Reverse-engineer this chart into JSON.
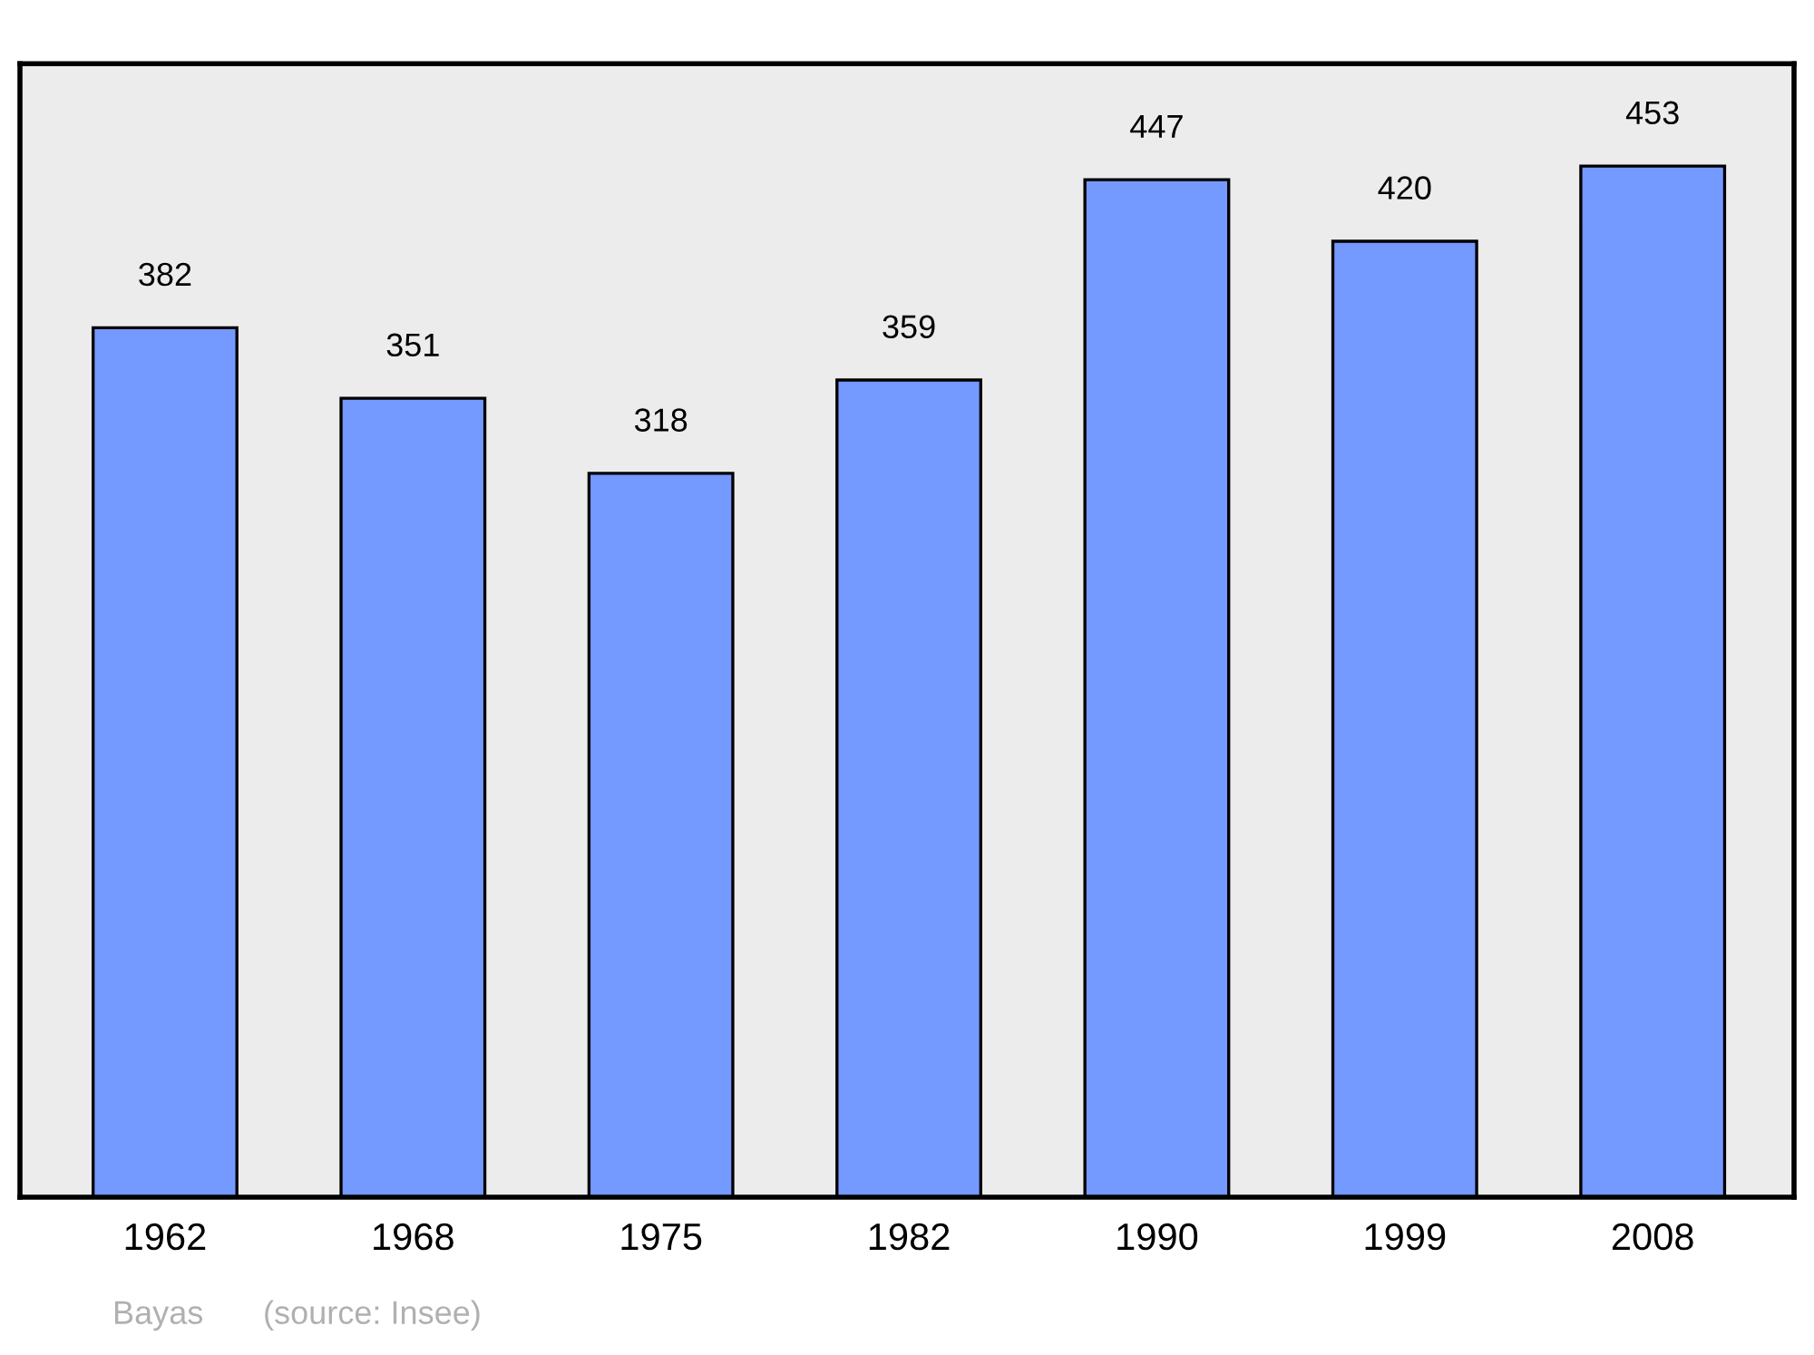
{
  "chart_data": {
    "type": "bar",
    "categories": [
      "1962",
      "1968",
      "1975",
      "1982",
      "1990",
      "1999",
      "2008"
    ],
    "values": [
      382,
      351,
      318,
      359,
      447,
      420,
      453
    ],
    "color": "#7499ff",
    "ylim": [
      0,
      498
    ],
    "tick_labels": "x",
    "data_labels": true,
    "grid": false,
    "legend": false,
    "annotations": [
      "Bayas",
      "(source: Insee)"
    ]
  }
}
